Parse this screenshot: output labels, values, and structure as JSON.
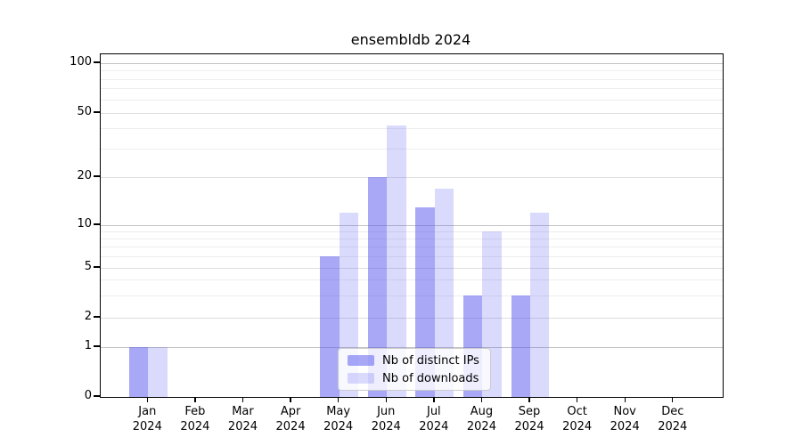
{
  "title": "ensembldb 2024",
  "chart_data": {
    "type": "bar",
    "title": "ensembldb 2024",
    "categories": [
      "Jan",
      "Feb",
      "Mar",
      "Apr",
      "May",
      "Jun",
      "Jul",
      "Aug",
      "Sep",
      "Oct",
      "Nov",
      "Dec"
    ],
    "category_year": "2024",
    "series": [
      {
        "name": "Nb of distinct IPs",
        "color": "rgba(88,88,240,0.52)",
        "values": [
          1,
          0,
          0,
          0,
          6,
          20,
          13,
          3,
          3,
          0,
          0,
          0
        ]
      },
      {
        "name": "Nb of downloads",
        "color": "rgba(88,88,240,0.22)",
        "values": [
          1,
          0,
          0,
          0,
          12,
          42,
          17,
          9,
          12,
          0,
          0,
          0
        ]
      }
    ],
    "xlabel": "",
    "ylabel": "",
    "yticks": [
      0,
      1,
      2,
      5,
      10,
      20,
      50,
      100
    ],
    "ylim": [
      0,
      100
    ],
    "scale": "log-like (0,1,2,5,10,20,50,100)",
    "grid": "horizontal major and minor gridlines",
    "legend_position": "inside bottom center"
  },
  "colors": {
    "axis": "#000000",
    "grid_decade": "#c3c3c3",
    "grid_mid": "#dedede",
    "grid_minor": "#ededed",
    "bar_ips": "rgba(88,88,240,0.52)",
    "bar_downloads": "rgba(88,88,240,0.22)"
  }
}
